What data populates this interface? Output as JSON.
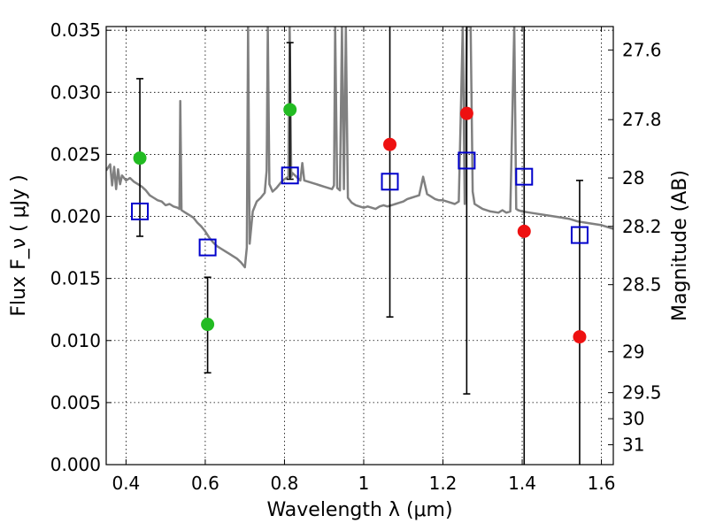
{
  "chart_data": {
    "type": "scatter",
    "xlabel": "Wavelength  λ (μm)",
    "ylabel": "Flux  F_ν  ( μJy )",
    "ylabel_right": "Magnitude (AB)",
    "xlim": [
      0.35,
      1.63
    ],
    "ylim": [
      0.0,
      0.0353
    ],
    "grid": true,
    "x_ticks": [
      {
        "value": 0.4,
        "label": "0.4"
      },
      {
        "value": 0.6,
        "label": "0.6"
      },
      {
        "value": 0.8,
        "label": "0.8"
      },
      {
        "value": 1.0,
        "label": "1"
      },
      {
        "value": 1.2,
        "label": "1.2"
      },
      {
        "value": 1.4,
        "label": "1.4"
      },
      {
        "value": 1.6,
        "label": "1.6"
      }
    ],
    "y_ticks": [
      {
        "value": 0.0,
        "label": "0.000"
      },
      {
        "value": 0.005,
        "label": "0.005"
      },
      {
        "value": 0.01,
        "label": "0.010"
      },
      {
        "value": 0.015,
        "label": "0.015"
      },
      {
        "value": 0.02,
        "label": "0.020"
      },
      {
        "value": 0.025,
        "label": "0.025"
      },
      {
        "value": 0.03,
        "label": "0.030"
      },
      {
        "value": 0.035,
        "label": "0.035"
      }
    ],
    "right_ticks": [
      {
        "flux": 0.0334,
        "label": "27.6"
      },
      {
        "flux": 0.0278,
        "label": "27.8"
      },
      {
        "flux": 0.0231,
        "label": "28"
      },
      {
        "flux": 0.0192,
        "label": "28.2"
      },
      {
        "flux": 0.0145,
        "label": "28.5"
      },
      {
        "flux": 0.0091,
        "label": "29"
      },
      {
        "flux": 0.0058,
        "label": "29.5"
      },
      {
        "flux": 0.0037,
        "label": "30"
      },
      {
        "flux": 0.0016,
        "label": "31"
      }
    ],
    "model_spectrum": {
      "color": "#808080",
      "points": [
        [
          0.35,
          0.0237
        ],
        [
          0.36,
          0.0242
        ],
        [
          0.365,
          0.0225
        ],
        [
          0.37,
          0.024
        ],
        [
          0.375,
          0.0222
        ],
        [
          0.38,
          0.0238
        ],
        [
          0.385,
          0.0226
        ],
        [
          0.39,
          0.0233
        ],
        [
          0.4,
          0.0229
        ],
        [
          0.41,
          0.0231
        ],
        [
          0.42,
          0.0228
        ],
        [
          0.43,
          0.0226
        ],
        [
          0.44,
          0.0224
        ],
        [
          0.45,
          0.0221
        ],
        [
          0.46,
          0.0217
        ],
        [
          0.47,
          0.0215
        ],
        [
          0.48,
          0.0213
        ],
        [
          0.49,
          0.0212
        ],
        [
          0.5,
          0.0209
        ],
        [
          0.51,
          0.021
        ],
        [
          0.52,
          0.0208
        ],
        [
          0.53,
          0.0207
        ],
        [
          0.535,
          0.0206
        ],
        [
          0.537,
          0.0293
        ],
        [
          0.54,
          0.0205
        ],
        [
          0.55,
          0.0203
        ],
        [
          0.56,
          0.0201
        ],
        [
          0.57,
          0.0199
        ],
        [
          0.58,
          0.0195
        ],
        [
          0.59,
          0.0192
        ],
        [
          0.6,
          0.0188
        ],
        [
          0.61,
          0.0183
        ],
        [
          0.62,
          0.0179
        ],
        [
          0.63,
          0.0176
        ],
        [
          0.64,
          0.0174
        ],
        [
          0.65,
          0.0172
        ],
        [
          0.66,
          0.017
        ],
        [
          0.67,
          0.0168
        ],
        [
          0.68,
          0.0166
        ],
        [
          0.69,
          0.0163
        ],
        [
          0.7,
          0.0159
        ],
        [
          0.705,
          0.0175
        ],
        [
          0.708,
          0.0353
        ],
        [
          0.712,
          0.0178
        ],
        [
          0.72,
          0.0204
        ],
        [
          0.73,
          0.0212
        ],
        [
          0.74,
          0.0215
        ],
        [
          0.75,
          0.0219
        ],
        [
          0.755,
          0.0237
        ],
        [
          0.758,
          0.0353
        ],
        [
          0.762,
          0.0226
        ],
        [
          0.77,
          0.022
        ],
        [
          0.78,
          0.0223
        ],
        [
          0.79,
          0.0227
        ],
        [
          0.8,
          0.023
        ],
        [
          0.81,
          0.0232
        ],
        [
          0.813,
          0.0353
        ],
        [
          0.817,
          0.0232
        ],
        [
          0.82,
          0.0235
        ],
        [
          0.83,
          0.0232
        ],
        [
          0.84,
          0.0229
        ],
        [
          0.845,
          0.0243
        ],
        [
          0.85,
          0.0229
        ],
        [
          0.86,
          0.0228
        ],
        [
          0.87,
          0.0227
        ],
        [
          0.88,
          0.0226
        ],
        [
          0.89,
          0.0225
        ],
        [
          0.9,
          0.0224
        ],
        [
          0.91,
          0.0223
        ],
        [
          0.92,
          0.0222
        ],
        [
          0.925,
          0.0225
        ],
        [
          0.928,
          0.0353
        ],
        [
          0.933,
          0.0223
        ],
        [
          0.94,
          0.0221
        ],
        [
          0.945,
          0.0353
        ],
        [
          0.95,
          0.0222
        ],
        [
          0.955,
          0.0353
        ],
        [
          0.96,
          0.0215
        ],
        [
          0.97,
          0.0211
        ],
        [
          0.98,
          0.0209
        ],
        [
          0.99,
          0.0208
        ],
        [
          1.0,
          0.0207
        ],
        [
          1.01,
          0.0208
        ],
        [
          1.02,
          0.0207
        ],
        [
          1.03,
          0.0206
        ],
        [
          1.04,
          0.0208
        ],
        [
          1.05,
          0.0209
        ],
        [
          1.06,
          0.0208
        ],
        [
          1.07,
          0.0209
        ],
        [
          1.08,
          0.021
        ],
        [
          1.09,
          0.0211
        ],
        [
          1.1,
          0.0212
        ],
        [
          1.11,
          0.0214
        ],
        [
          1.12,
          0.0215
        ],
        [
          1.13,
          0.0216
        ],
        [
          1.14,
          0.0217
        ],
        [
          1.15,
          0.0232
        ],
        [
          1.16,
          0.0218
        ],
        [
          1.17,
          0.0216
        ],
        [
          1.18,
          0.0214
        ],
        [
          1.19,
          0.0213
        ],
        [
          1.2,
          0.0213
        ],
        [
          1.21,
          0.0212
        ],
        [
          1.22,
          0.0211
        ],
        [
          1.23,
          0.021
        ],
        [
          1.24,
          0.0212
        ],
        [
          1.25,
          0.0353
        ],
        [
          1.255,
          0.021
        ],
        [
          1.26,
          0.0353
        ],
        [
          1.27,
          0.0353
        ],
        [
          1.275,
          0.022
        ],
        [
          1.28,
          0.021
        ],
        [
          1.3,
          0.0206
        ],
        [
          1.32,
          0.0204
        ],
        [
          1.34,
          0.0203
        ],
        [
          1.35,
          0.0205
        ],
        [
          1.36,
          0.0203
        ],
        [
          1.37,
          0.0204
        ],
        [
          1.38,
          0.0353
        ],
        [
          1.385,
          0.0206
        ],
        [
          1.39,
          0.0205
        ],
        [
          1.4,
          0.0204
        ],
        [
          1.42,
          0.0203
        ],
        [
          1.44,
          0.0202
        ],
        [
          1.46,
          0.0201
        ],
        [
          1.48,
          0.02
        ],
        [
          1.5,
          0.0199
        ],
        [
          1.52,
          0.0198
        ],
        [
          1.54,
          0.0196
        ],
        [
          1.56,
          0.0195
        ],
        [
          1.58,
          0.0194
        ],
        [
          1.6,
          0.0193
        ],
        [
          1.62,
          0.0191
        ],
        [
          1.63,
          0.019
        ]
      ]
    },
    "series": [
      {
        "marker": "open-square",
        "color": "#0000cc",
        "points": [
          {
            "x": 0.435,
            "y": 0.0204
          },
          {
            "x": 0.606,
            "y": 0.0175
          },
          {
            "x": 0.814,
            "y": 0.0233
          },
          {
            "x": 1.066,
            "y": 0.0228
          },
          {
            "x": 1.26,
            "y": 0.0245
          },
          {
            "x": 1.405,
            "y": 0.0232
          },
          {
            "x": 1.545,
            "y": 0.0185
          }
        ]
      },
      {
        "marker": "filled-circle",
        "color": "#22bb22",
        "points": [
          {
            "x": 0.435,
            "y": 0.0247,
            "err_lo": 0.0184,
            "err_hi": 0.0311
          },
          {
            "x": 0.606,
            "y": 0.0113,
            "err_lo": 0.0074,
            "err_hi": 0.0151
          },
          {
            "x": 0.814,
            "y": 0.0286,
            "err_lo": 0.023,
            "err_hi": 0.034
          }
        ]
      },
      {
        "marker": "filled-circle",
        "color": "#ee1111",
        "points": [
          {
            "x": 1.066,
            "y": 0.0258,
            "err_lo": 0.0119,
            "err_hi": 0.0353
          },
          {
            "x": 1.26,
            "y": 0.0283,
            "err_lo": 0.0057,
            "err_hi": 0.0353
          },
          {
            "x": 1.405,
            "y": 0.0188,
            "err_lo": 0.0,
            "err_hi": 0.0353
          },
          {
            "x": 1.545,
            "y": 0.0103,
            "err_lo": 0.0,
            "err_hi": 0.0229
          }
        ]
      }
    ]
  }
}
